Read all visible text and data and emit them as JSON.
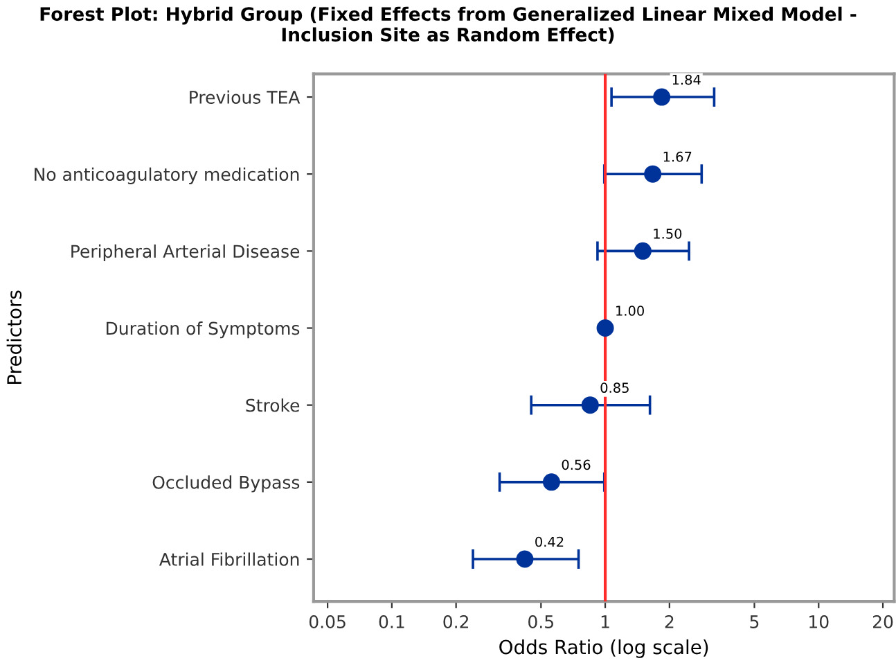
{
  "chart_data": {
    "type": "scatter",
    "orientation": "horizontal",
    "title": "Forest Plot: Hybrid Group (Fixed Effects from Generalized Linear Mixed Model -\nInclusion Site as Random Effect)",
    "xlabel": "Odds Ratio (log scale)",
    "ylabel": "Predictors",
    "categories": [
      "Previous TEA",
      "No anticoagulatory medication",
      "Peripheral Arterial Disease",
      "Duration of Symptoms",
      "Stroke",
      "Occluded Bypass",
      "Atrial Fibrillation"
    ],
    "series": [
      {
        "color": "#003399",
        "marker": "circle",
        "values": [
          1.84,
          1.67,
          1.5,
          1.0,
          0.85,
          0.56,
          0.42
        ],
        "errors": [
          [
            1.07,
            3.24
          ],
          [
            0.99,
            2.83
          ],
          [
            0.92,
            2.47
          ],
          null,
          [
            0.45,
            1.62
          ],
          [
            0.32,
            0.99
          ],
          [
            0.24,
            0.75
          ]
        ],
        "value_labels": [
          "1.84",
          "1.67",
          "1.50",
          "1.00",
          "0.85",
          "0.56",
          "0.42"
        ]
      }
    ],
    "log": "x",
    "xlim": [
      0.043,
      22.6
    ],
    "xticks": [
      0.05,
      0.1,
      0.2,
      0.5,
      1,
      2,
      5,
      10,
      20
    ],
    "ref_lines": [
      {
        "axis": "x",
        "value": 1,
        "color": "#ff2a2a"
      }
    ],
    "grid": false,
    "legend": false
  }
}
